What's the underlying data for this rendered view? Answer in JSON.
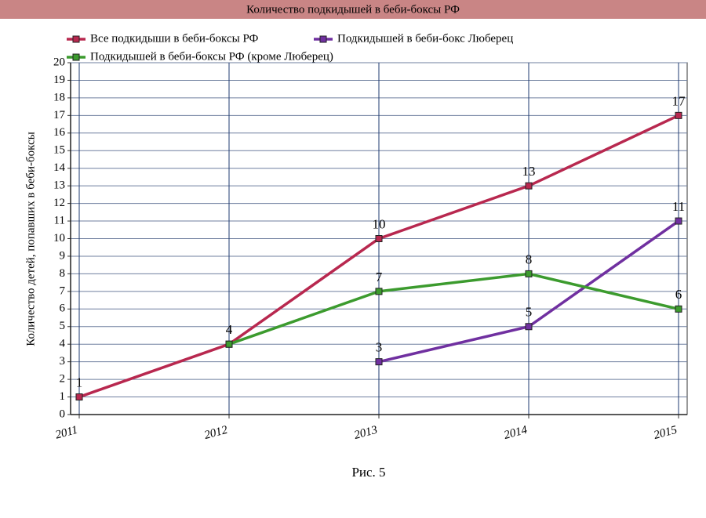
{
  "chart_data": {
    "type": "line",
    "title": "Количество подкидышей в беби-боксы РФ",
    "y_label": "Количество детей, попавших в беби-боксы",
    "caption": "Рис. 5",
    "categories": [
      "2011",
      "2012",
      "2013",
      "2014",
      "2015"
    ],
    "series": [
      {
        "name": "Все подкидыши в беби-боксы РФ",
        "color": "#b8284f",
        "values": [
          1,
          4,
          10,
          13,
          17
        ]
      },
      {
        "name": "Подкидышей в беби-бокс Люберец",
        "color": "#7030a0",
        "values": [
          null,
          null,
          3,
          5,
          11
        ]
      },
      {
        "name": "Подкидышей в беби-боксы РФ (кроме Люберец)",
        "color": "#3c9b2e",
        "values": [
          null,
          4,
          7,
          8,
          6
        ]
      }
    ],
    "ylim": [
      0,
      20
    ],
    "yticks": [
      0,
      1,
      2,
      3,
      4,
      5,
      6,
      7,
      8,
      9,
      10,
      11,
      12,
      13,
      14,
      15,
      16,
      17,
      18,
      19,
      20
    ],
    "grid": true
  }
}
